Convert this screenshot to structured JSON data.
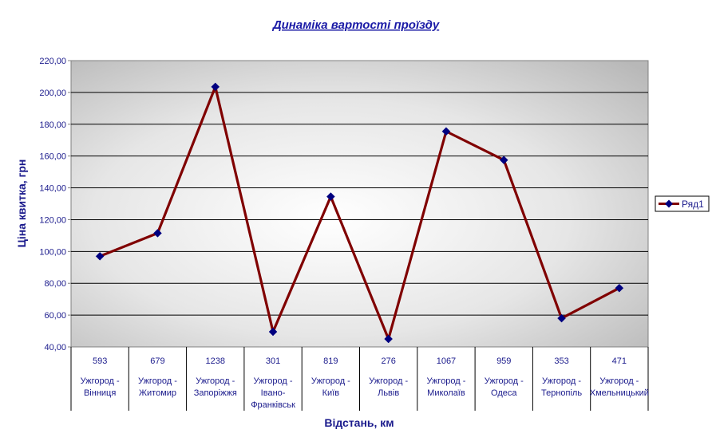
{
  "chart_data": {
    "type": "line",
    "title": "Динаміка вартості проїзду",
    "xlabel": "Відстань,  км",
    "ylabel": "Ціна квитка, грн",
    "ylim": [
      40,
      220
    ],
    "yticks": [
      "40,00",
      "60,00",
      "80,00",
      "100,00",
      "120,00",
      "140,00",
      "160,00",
      "180,00",
      "200,00",
      "220,00"
    ],
    "grid": true,
    "legend_position": "right",
    "categories": [
      {
        "distance": "593",
        "route": [
          "Ужгород -",
          "Вінниця"
        ]
      },
      {
        "distance": "679",
        "route": [
          "Ужгород -",
          "Житомир"
        ]
      },
      {
        "distance": "1238",
        "route": [
          "Ужгород -",
          "Запоріжжя"
        ]
      },
      {
        "distance": "301",
        "route": [
          "Ужгород -",
          "Івано-",
          "Франківськ"
        ]
      },
      {
        "distance": "819",
        "route": [
          "Ужгород -",
          "Київ"
        ]
      },
      {
        "distance": "276",
        "route": [
          "Ужгород -",
          "Львів"
        ]
      },
      {
        "distance": "1067",
        "route": [
          "Ужгород -",
          "Миколаїв"
        ]
      },
      {
        "distance": "959",
        "route": [
          "Ужгород -",
          "Одеса"
        ]
      },
      {
        "distance": "353",
        "route": [
          "Ужгород -",
          "Тернопіль"
        ]
      },
      {
        "distance": "471",
        "route": [
          "Ужгород -",
          "Хмельницький"
        ]
      }
    ],
    "series": [
      {
        "name": "Ряд1",
        "values": [
          97,
          111.5,
          203.5,
          49.5,
          134.5,
          45,
          175.5,
          157.5,
          58,
          77
        ],
        "line_color": "#800000",
        "marker_color": "#000080"
      }
    ]
  }
}
